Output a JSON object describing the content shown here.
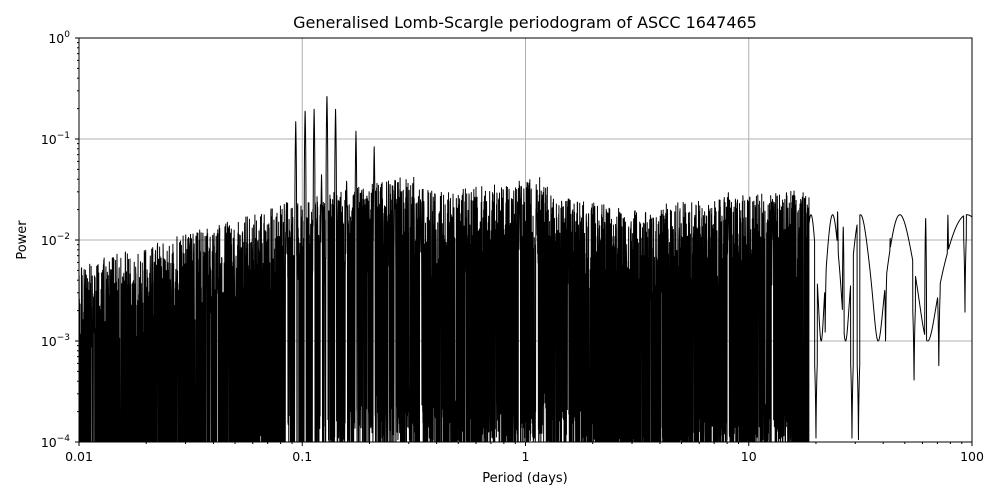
{
  "chart_data": {
    "type": "line",
    "title": "Generalised Lomb-Scargle periodogram of ASCC 1647465",
    "xlabel": "Period (days)",
    "ylabel": "Power",
    "xscale": "log",
    "yscale": "log",
    "xlim": [
      0.01,
      100
    ],
    "ylim": [
      0.0001,
      1
    ],
    "grid": true,
    "x_ticks": [
      {
        "value": 0.01,
        "label": "0.01"
      },
      {
        "value": 0.1,
        "label": "0.1"
      },
      {
        "value": 1,
        "label": "1"
      },
      {
        "value": 10,
        "label": "10"
      },
      {
        "value": 100,
        "label": "100"
      }
    ],
    "y_ticks": [
      {
        "value": 0.0001,
        "base": "10",
        "exp": "−4"
      },
      {
        "value": 0.001,
        "base": "10",
        "exp": "−3"
      },
      {
        "value": 0.01,
        "base": "10",
        "exp": "−2"
      },
      {
        "value": 0.1,
        "base": "10",
        "exp": "−1"
      },
      {
        "value": 1,
        "base": "10",
        "exp": "0"
      }
    ],
    "line_color": "#000000",
    "peaks": [
      {
        "period": 0.085,
        "power": 0.025
      },
      {
        "period": 0.0935,
        "power": 0.15
      },
      {
        "period": 0.103,
        "power": 0.2
      },
      {
        "period": 0.113,
        "power": 0.2
      },
      {
        "period": 0.122,
        "power": 0.045
      },
      {
        "period": 0.129,
        "power": 0.28
      },
      {
        "period": 0.141,
        "power": 0.2
      },
      {
        "period": 0.158,
        "power": 0.04
      },
      {
        "period": 0.174,
        "power": 0.12
      },
      {
        "period": 0.21,
        "power": 0.085
      },
      {
        "period": 0.26,
        "power": 0.04
      },
      {
        "period": 0.34,
        "power": 0.022
      },
      {
        "period": 0.94,
        "power": 0.035
      },
      {
        "period": 1.12,
        "power": 0.03
      },
      {
        "period": 8.1,
        "power": 0.03
      },
      {
        "period": 12.8,
        "power": 0.024
      },
      {
        "period": 25.0,
        "power": 0.02
      },
      {
        "period": 26.5,
        "power": 0.014
      },
      {
        "period": 43.0,
        "power": 0.011
      },
      {
        "period": 62.0,
        "power": 0.017
      },
      {
        "period": 78.0,
        "power": 0.018
      },
      {
        "period": 98.0,
        "power": 0.01
      }
    ],
    "dips": [
      {
        "period": 20.0,
        "power": 0.0001
      },
      {
        "period": 22.0,
        "power": 0.0011
      },
      {
        "period": 29.0,
        "power": 0.0001
      },
      {
        "period": 31.0,
        "power": 0.0001
      },
      {
        "period": 41.0,
        "power": 0.00085
      },
      {
        "period": 55.0,
        "power": 0.00035
      },
      {
        "period": 71.0,
        "power": 0.0005
      },
      {
        "period": 93.0,
        "power": 0.0018
      }
    ]
  }
}
